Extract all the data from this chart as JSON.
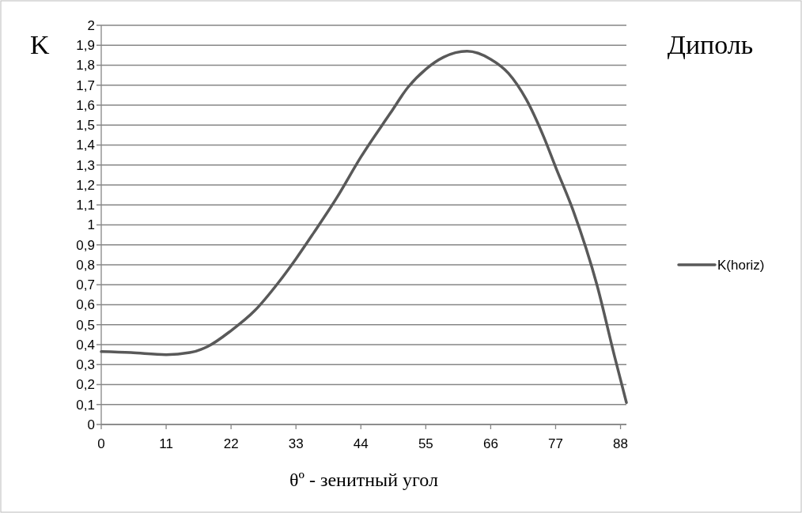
{
  "chart_data": {
    "type": "line",
    "title": "Диполь",
    "xlabel": "θº - зенитный угол",
    "ylabel": "K",
    "xlim": [
      0,
      89
    ],
    "xticks": [
      0,
      11,
      22,
      33,
      44,
      55,
      66,
      77,
      88
    ],
    "ylim": [
      0,
      2
    ],
    "yticks": [
      0,
      {
        "value": 0.1,
        "label": "0,1"
      },
      {
        "value": 0.2,
        "label": "0,2"
      },
      {
        "value": 0.3,
        "label": "0,3"
      },
      {
        "value": 0.4,
        "label": "0,4"
      },
      {
        "value": 0.5,
        "label": "0,5"
      },
      {
        "value": 0.6,
        "label": "0,6"
      },
      {
        "value": 0.7,
        "label": "0,7"
      },
      {
        "value": 0.8,
        "label": "0,8"
      },
      {
        "value": 0.9,
        "label": "0,9"
      },
      1,
      {
        "value": 1.1,
        "label": "1,1"
      },
      {
        "value": 1.2,
        "label": "1,2"
      },
      {
        "value": 1.3,
        "label": "1,3"
      },
      {
        "value": 1.4,
        "label": "1,4"
      },
      {
        "value": 1.5,
        "label": "1,5"
      },
      {
        "value": 1.6,
        "label": "1,6"
      },
      {
        "value": 1.7,
        "label": "1,7"
      },
      {
        "value": 1.8,
        "label": "1,8"
      },
      {
        "value": 1.9,
        "label": "1,9"
      },
      2
    ],
    "grid": "y",
    "legend": "right",
    "marker": "none",
    "line_style": "solid",
    "series": [
      {
        "name": "K(horiz)",
        "color": "#595959",
        "x": [
          0,
          5,
          11,
          15,
          18,
          22,
          26,
          30,
          33,
          36,
          40,
          44,
          49,
          52,
          55,
          58,
          62,
          66,
          69,
          72,
          75,
          77,
          80,
          84,
          87,
          89
        ],
        "values": [
          0.365,
          0.36,
          0.35,
          0.36,
          0.39,
          0.47,
          0.57,
          0.71,
          0.83,
          0.96,
          1.14,
          1.34,
          1.56,
          1.69,
          1.78,
          1.84,
          1.87,
          1.83,
          1.76,
          1.63,
          1.44,
          1.29,
          1.07,
          0.7,
          0.34,
          0.11
        ]
      }
    ]
  }
}
